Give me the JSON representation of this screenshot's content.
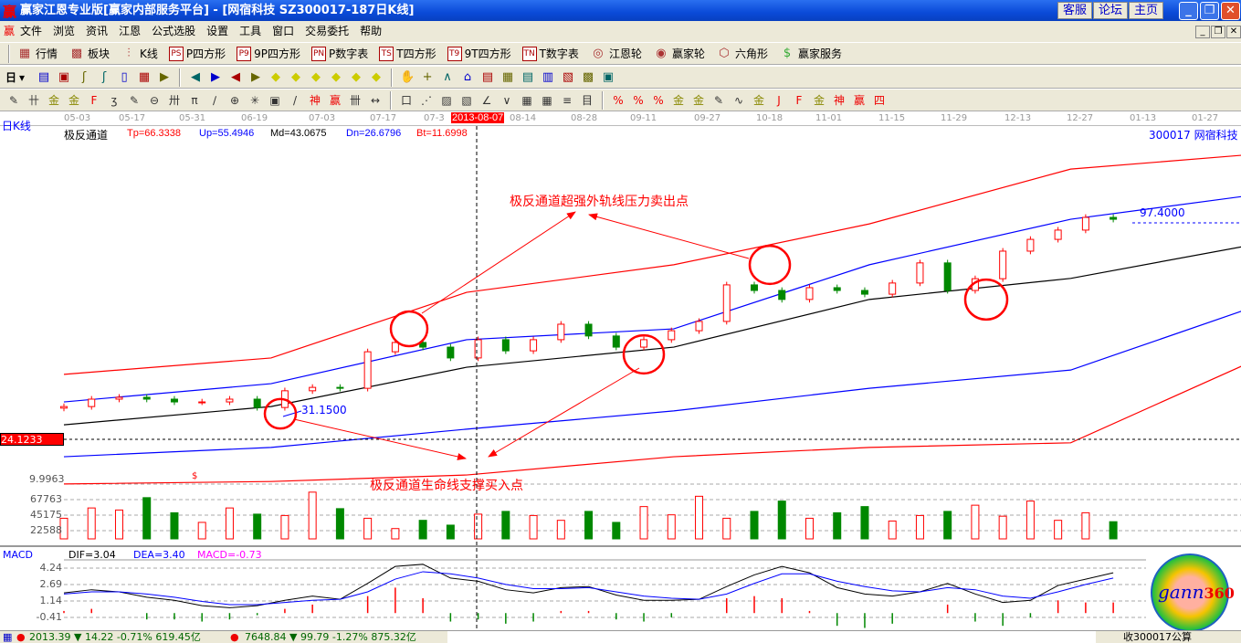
{
  "window": {
    "title": "赢家江恩专业版[赢家内部服务平台] - [网宿科技    SZ300017-187日K线]",
    "buttons": [
      "客服",
      "论坛",
      "主页"
    ]
  },
  "menu": [
    "文件",
    "浏览",
    "资讯",
    "江恩",
    "公式选股",
    "设置",
    "工具",
    "窗口",
    "交易委托",
    "帮助"
  ],
  "toolbar1": [
    {
      "icon": "grid-icon",
      "label": "行情"
    },
    {
      "icon": "blocks-icon",
      "label": "板块"
    },
    {
      "icon": "candles-icon",
      "label": "K线"
    },
    {
      "icon": "PS",
      "label": "P四方形"
    },
    {
      "icon": "P9",
      "label": "9P四方形"
    },
    {
      "icon": "PN",
      "label": "P数字表"
    },
    {
      "icon": "TS",
      "label": "T四方形"
    },
    {
      "icon": "T9",
      "label": "9T四方形"
    },
    {
      "icon": "TN",
      "label": "T数字表"
    },
    {
      "icon": "gann-wheel-icon",
      "label": "江恩轮"
    },
    {
      "icon": "big-wheel-icon",
      "label": "赢家轮"
    },
    {
      "icon": "hexagon-icon",
      "label": "六角形"
    },
    {
      "icon": "dollar-icon",
      "label": "赢家服务"
    }
  ],
  "toolbar2": {
    "period": "日",
    "icons": [
      "draw-icon",
      "list-icon",
      "chart3-icon",
      "chart9-icon",
      "candle-type-icon",
      "stats-icon",
      "flag-icon",
      "first-icon",
      "last-icon",
      "left-icon",
      "right-icon",
      "yellow-left-icon",
      "yellow-right-icon",
      "expand-icon",
      "shrink-icon",
      "zoom-in-icon",
      "zoom-out-icon",
      "hand-icon",
      "cross-icon",
      "line-icon",
      "node-icon",
      "fund-icon",
      "calendar-icon",
      "calculator-icon",
      "notes-icon",
      "save-icon",
      "network-icon",
      "print-icon"
    ]
  },
  "toolbar3": {
    "glyphs": [
      "✎",
      "卄",
      "金",
      "金",
      "F",
      "ʒ",
      "✎",
      "⊖",
      "卅",
      "π",
      "∕",
      "⊕",
      "✳",
      "▣",
      "/",
      "神",
      "赢",
      "卌",
      "↔",
      "口",
      "⋰",
      "▨",
      "▧",
      "∠",
      "∨",
      "▦",
      "▦",
      "≡",
      "目",
      "%",
      "%",
      "%",
      "金",
      "金",
      "✎",
      "∿",
      "金",
      "J",
      "F",
      "金",
      "神",
      "赢",
      "四"
    ]
  },
  "axis": {
    "period_label": "日K线",
    "dates": [
      "05-03",
      "05-17",
      "05-31",
      "06-19",
      "07-03",
      "07-17",
      "07-3",
      "08-14",
      "08-28",
      "09-11",
      "09-27",
      "10-18",
      "11-01",
      "11-15",
      "11-29",
      "12-13",
      "12-27",
      "01-13",
      "01-27"
    ],
    "cursor_date": "2013-08-07"
  },
  "indicator": {
    "name": "极反通道",
    "tp": "Tp=66.3338",
    "up": "Up=55.4946",
    "md": "Md=43.0675",
    "dn": "Dn=26.6796",
    "bt": "Bt=11.6998",
    "stock": "300017  网宿科技"
  },
  "colors": {
    "up": "#ff0000",
    "down": "#008000",
    "upper_band": "#0000ff",
    "mid": "#000000",
    "outer": "#ff0000"
  },
  "annotations": {
    "sell": "极反通道超强外轨线压力卖出点",
    "buy": "极反通道生命线支撑买入点",
    "low_label": "31.1500",
    "high_label": "97.4000",
    "cursor_price": "24.1233",
    "sub_value": "9.9963",
    "dollar": "$"
  },
  "chart_data": [
    {
      "type": "candlestick",
      "closes": [
        34.7,
        37.1,
        37.7,
        37.1,
        36.2,
        36.2,
        37.1,
        34.4,
        39.8,
        40.9,
        40.6,
        52.4,
        55.4,
        53.9,
        50.4,
        56.3,
        52.7,
        56.3,
        61.3,
        57.5,
        53.9,
        56.3,
        59.2,
        62.2,
        74.0,
        72.2,
        69.3,
        73.1,
        72.2,
        71.0,
        74.6,
        81.1,
        72.2,
        76.0,
        84.9,
        88.7,
        91.7,
        95.8,
        95.2
      ],
      "bands": {
        "index": [
          0,
          36,
          70,
          106,
          140,
          175,
          205
        ],
        "Tp": [
          45.1,
          50.4,
          71.6,
          80.5,
          93.7,
          111.4,
          115.9
        ],
        "Up": [
          36.2,
          42.1,
          56.3,
          59.8,
          80.5,
          95.2,
          102.6
        ],
        "Md": [
          28.8,
          34.7,
          47.4,
          53.9,
          69.3,
          76.1,
          86.4
        ],
        "Dn": [
          18.5,
          21.5,
          27.4,
          33.3,
          40.6,
          46.5,
          65.7
        ],
        "Bt": [
          9.7,
          10.5,
          12.6,
          18.5,
          21.5,
          23.0,
          48.0
        ]
      }
    },
    {
      "type": "bar",
      "name": "volume",
      "ticks": [
        "67763",
        "45175",
        "22588"
      ],
      "values": [
        30000,
        45000,
        42000,
        60000,
        38000,
        24000,
        45000,
        36000,
        34000,
        68000,
        44000,
        30000,
        15000,
        27000,
        20000,
        36000,
        40000,
        34000,
        27000,
        40000,
        24000,
        47000,
        35000,
        62000,
        30000,
        40000,
        55000,
        30000,
        38000,
        47000,
        26000,
        34000,
        40000,
        49000,
        33000,
        55000,
        27000,
        38000,
        25000
      ]
    },
    {
      "type": "line",
      "name": "MACD",
      "ticks": [
        "4.24",
        "2.69",
        "1.14",
        "-0.41"
      ],
      "legend": {
        "dif": "DIF=3.04",
        "dea": "DEA=3.40",
        "macd": "MACD=-0.73",
        "title": "MACD"
      },
      "dif": [
        1.9,
        2.2,
        2.0,
        1.5,
        1.2,
        0.7,
        0.5,
        0.7,
        1.2,
        1.6,
        1.3,
        2.8,
        4.4,
        4.6,
        3.3,
        3.0,
        2.2,
        1.9,
        2.4,
        2.5,
        1.7,
        1.2,
        1.2,
        1.3,
        2.5,
        3.6,
        4.4,
        3.8,
        2.4,
        1.8,
        1.6,
        2.0,
        2.8,
        1.8,
        1.0,
        1.2,
        2.6,
        3.2,
        3.8
      ],
      "dea": [
        1.8,
        2.0,
        2.0,
        1.8,
        1.5,
        1.1,
        0.8,
        0.8,
        1.0,
        1.2,
        1.3,
        2.0,
        3.2,
        3.9,
        3.7,
        3.3,
        2.7,
        2.3,
        2.3,
        2.4,
        2.0,
        1.6,
        1.4,
        1.3,
        1.8,
        2.8,
        3.7,
        3.7,
        3.0,
        2.5,
        2.1,
        2.0,
        2.4,
        2.2,
        1.6,
        1.4,
        2.0,
        2.7,
        3.3
      ]
    }
  ],
  "logo": "gann360",
  "status": {
    "sh": "2013.39 ▼ 14.22 -0.71% 619.45亿",
    "sz": "7648.84 ▼ 99.79 -1.27% 875.32亿",
    "right": "收300017公算"
  }
}
